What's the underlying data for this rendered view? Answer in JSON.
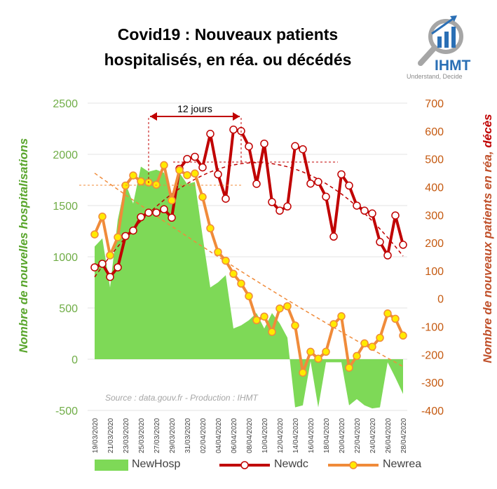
{
  "title_line1": "Covid19 : Nouveaux patients",
  "title_line2": "hospitalisés, en réa. ou décédés",
  "logo": {
    "name": "IHMT",
    "tagline": "Understand, Decide"
  },
  "source_note": "Source : data.gouv.fr - Production : IHMT",
  "annotation": "12 jours",
  "colors": {
    "newhosp": "#7ed957",
    "newdc": "#c00000",
    "newrea": "#f08b3a",
    "marker_fill": "#ffea00",
    "left_axis": "#70ad47",
    "right_axis": "#c55a11"
  },
  "chart_data": {
    "type": "line",
    "title": "Covid19 : Nouveaux patients hospitalisés, en réa. ou décédés",
    "ylabel_left": "Nombre de nouvelles hospitalisations",
    "ylabel_right_part1": "Nombre de nouveaux patients en réa, ",
    "ylabel_right_part2": "décès",
    "ylim_left": [
      -500,
      2500
    ],
    "ylim_right": [
      -400,
      700
    ],
    "yticks_left": [
      "-500",
      "0",
      "500",
      "1000",
      "1500",
      "2000",
      "2500"
    ],
    "yticks_right": [
      "-400",
      "-300",
      "-200",
      "-100",
      "0",
      "100",
      "200",
      "300",
      "400",
      "500",
      "600",
      "700"
    ],
    "x": [
      "19/03/2020",
      "20/03/2020",
      "21/03/2020",
      "22/03/2020",
      "23/03/2020",
      "24/03/2020",
      "25/03/2020",
      "26/03/2020",
      "27/03/2020",
      "28/03/2020",
      "29/03/2020",
      "30/03/2020",
      "31/03/2020",
      "01/04/2020",
      "02/04/2020",
      "03/04/2020",
      "04/04/2020",
      "05/04/2020",
      "06/04/2020",
      "07/04/2020",
      "08/04/2020",
      "09/04/2020",
      "10/04/2020",
      "11/04/2020",
      "12/04/2020",
      "13/04/2020",
      "14/04/2020",
      "15/04/2020",
      "16/04/2020",
      "17/04/2020",
      "18/04/2020",
      "19/04/2020",
      "20/04/2020",
      "21/04/2020",
      "22/04/2020",
      "23/04/2020",
      "24/04/2020",
      "25/04/2020",
      "26/04/2020",
      "27/04/2020",
      "28/04/2020"
    ],
    "series": [
      {
        "name": "NewHosp",
        "type": "area",
        "axis": "left",
        "values": [
          1100,
          1180,
          700,
          1360,
          1720,
          1520,
          1880,
          1830,
          1850,
          1820,
          1570,
          1820,
          1710,
          1730,
          1200,
          700,
          750,
          820,
          300,
          330,
          380,
          450,
          300,
          450,
          350,
          210,
          -470,
          -450,
          -20,
          -470,
          -30,
          -30,
          -30,
          -450,
          -390,
          -450,
          -480,
          -470,
          -30,
          -180,
          -340
        ]
      },
      {
        "name": "Newdc",
        "type": "line",
        "axis": "right",
        "values": [
          112,
          125,
          78,
          112,
          224,
          244,
          292,
          308,
          308,
          320,
          290,
          465,
          500,
          508,
          470,
          590,
          445,
          358,
          605,
          600,
          545,
          411,
          555,
          346,
          315,
          330,
          546,
          535,
          412,
          418,
          365,
          222,
          445,
          405,
          333,
          315,
          305,
          203,
          155,
          298,
          193
        ]
      },
      {
        "name": "Newrea",
        "type": "line",
        "axis": "right",
        "values": [
          230,
          294,
          155,
          220,
          405,
          441,
          420,
          416,
          408,
          478,
          352,
          460,
          442,
          448,
          364,
          252,
          167,
          136,
          89,
          54,
          9,
          -77,
          -64,
          -119,
          -35,
          -27,
          -96,
          -265,
          -190,
          -215,
          -190,
          -91,
          -63,
          -247,
          -205,
          -160,
          -172,
          -140,
          -53,
          -72,
          -132
        ]
      }
    ],
    "legend": [
      "NewHosp",
      "Newdc",
      "Newrea"
    ],
    "legend_position": "bottom"
  }
}
